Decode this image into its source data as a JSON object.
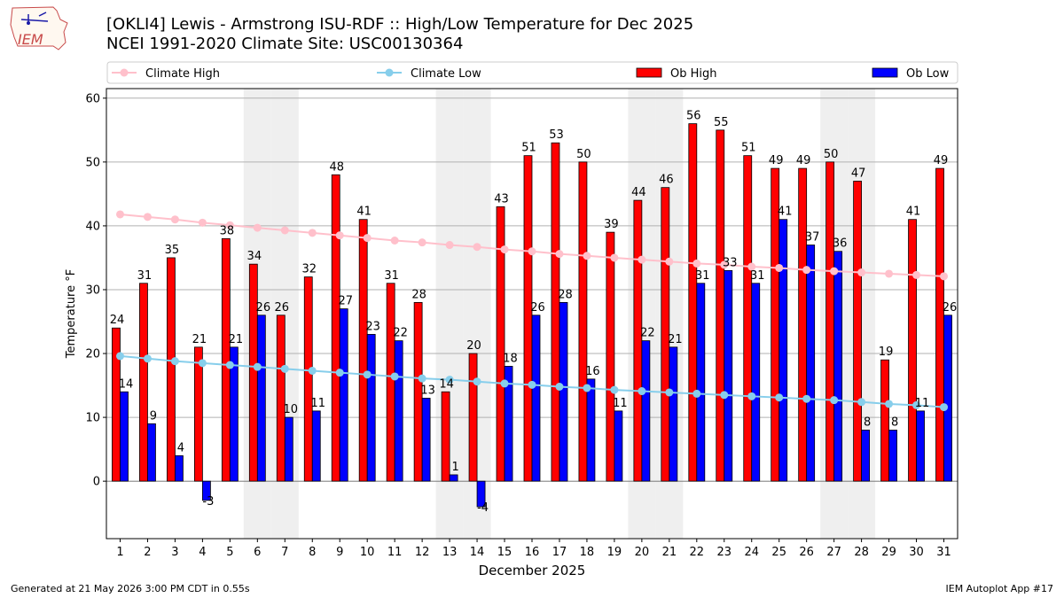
{
  "header": {
    "title_line1": "[OKLI4] Lewis - Armstrong ISU-RDF :: High/Low Temperature for Dec 2025",
    "title_line2": "NCEI 1991-2020 Climate Site: USC00130364",
    "logo_text": "IEM"
  },
  "footer": {
    "left": "Generated at 21 May 2026 3:00 PM CDT in 0.55s",
    "right": "IEM Autoplot App #17"
  },
  "chart_data": {
    "type": "bar",
    "xlabel": "December 2025",
    "ylabel": "Temperature °F",
    "ylim": [
      -9,
      61.5
    ],
    "yticks": [
      0,
      10,
      20,
      30,
      40,
      50,
      60
    ],
    "grid": "horizontal",
    "legend_position": "top",
    "categories": [
      "1",
      "2",
      "3",
      "4",
      "5",
      "6",
      "7",
      "8",
      "9",
      "10",
      "11",
      "12",
      "13",
      "14",
      "15",
      "16",
      "17",
      "18",
      "19",
      "20",
      "21",
      "22",
      "23",
      "24",
      "25",
      "26",
      "27",
      "28",
      "29",
      "30",
      "31"
    ],
    "weekend_shading_days": [
      6,
      7,
      13,
      14,
      20,
      21,
      27,
      28
    ],
    "series": [
      {
        "name": "Ob High",
        "kind": "bar",
        "color": "#ff0000",
        "values": [
          24,
          31,
          35,
          21,
          38,
          34,
          26,
          32,
          48,
          41,
          31,
          28,
          14,
          20,
          43,
          51,
          53,
          50,
          39,
          44,
          46,
          56,
          55,
          51,
          49,
          49,
          50,
          47,
          19,
          41,
          49
        ]
      },
      {
        "name": "Ob Low",
        "kind": "bar",
        "color": "#0000ff",
        "values": [
          14,
          9,
          4,
          -3,
          21,
          26,
          10,
          11,
          27,
          23,
          22,
          13,
          1,
          -4,
          18,
          26,
          28,
          16,
          11,
          22,
          21,
          31,
          33,
          31,
          41,
          37,
          36,
          8,
          8,
          11,
          26
        ]
      },
      {
        "name": "Climate High",
        "kind": "line",
        "color": "#ffc0cb",
        "values": [
          41.8,
          41.4,
          41.0,
          40.5,
          40.1,
          39.7,
          39.3,
          38.9,
          38.5,
          38.1,
          37.7,
          37.4,
          37.0,
          36.7,
          36.3,
          36.0,
          35.6,
          35.3,
          35.0,
          34.7,
          34.4,
          34.1,
          33.9,
          33.6,
          33.4,
          33.1,
          32.9,
          32.7,
          32.5,
          32.3,
          32.1
        ]
      },
      {
        "name": "Climate Low",
        "kind": "line",
        "color": "#87ceeb",
        "values": [
          19.6,
          19.2,
          18.8,
          18.5,
          18.2,
          17.9,
          17.6,
          17.3,
          17.0,
          16.7,
          16.4,
          16.1,
          15.9,
          15.6,
          15.3,
          15.1,
          14.8,
          14.6,
          14.3,
          14.1,
          13.9,
          13.7,
          13.5,
          13.3,
          13.1,
          12.9,
          12.7,
          12.4,
          12.1,
          11.9,
          11.6
        ]
      }
    ]
  }
}
